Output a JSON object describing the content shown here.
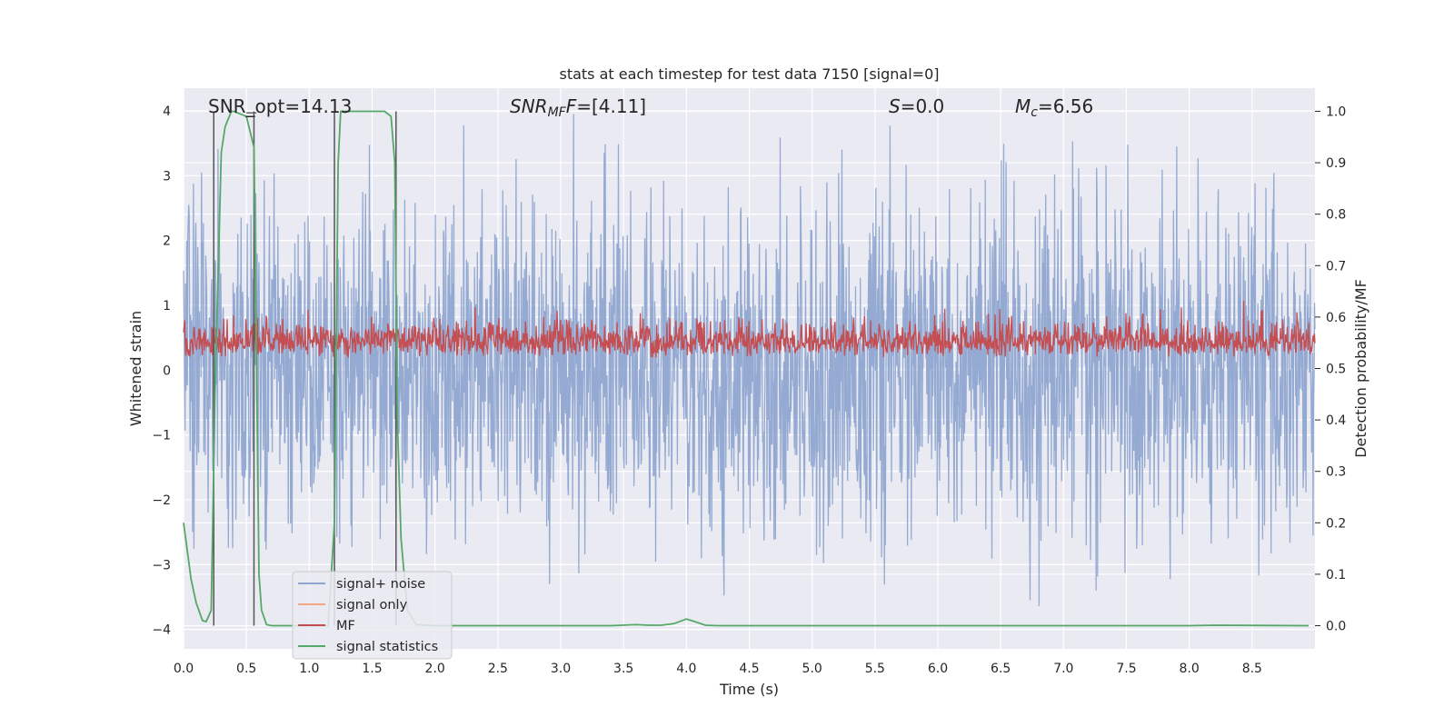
{
  "chart_data": {
    "type": "line",
    "title": "stats at each timestep for test data 7150 [signal=0]",
    "xlabel": "Time (s)",
    "ylabel_left": "Whitened strain",
    "ylabel_right": "Detection probability/MF",
    "xlim": [
      0.0,
      9.0
    ],
    "ylim_left": [
      -4.3,
      4.35
    ],
    "ylim_right": [
      -0.045,
      1.045
    ],
    "x_ticks": [
      "0.0",
      "0.5",
      "1.0",
      "1.5",
      "2.0",
      "2.5",
      "3.0",
      "3.5",
      "4.0",
      "4.5",
      "5.0",
      "5.5",
      "6.0",
      "6.5",
      "7.0",
      "7.5",
      "8.0",
      "8.5"
    ],
    "y_left_ticks": [
      "4",
      "3",
      "2",
      "1",
      "0",
      "−1",
      "−2",
      "−3",
      "−4"
    ],
    "y_right_ticks": [
      "1.0",
      "0.9",
      "0.8",
      "0.7",
      "0.6",
      "0.5",
      "0.4",
      "0.3",
      "0.2",
      "0.1",
      "0.0"
    ],
    "grid": true,
    "annotations": {
      "snr_opt": "SNR_opt=14.13",
      "snr_mf_base": "SNR",
      "snr_mf_sub": "MF",
      "snr_mf_rest": "=[4.11]",
      "s_base": "S",
      "s_rest": "=0.0",
      "mc_base": "M",
      "mc_sub": "c",
      "mc_rest": "=6.56"
    },
    "detection_markers_x": [
      0.24,
      0.56,
      1.2,
      1.69
    ],
    "series": [
      {
        "name": "signal+ noise",
        "color": "#8fa6d0",
        "axis": "left",
        "note": "whitened strain noise, amplitude within about -4 to 4"
      },
      {
        "name": "signal only",
        "color": "#f4a582",
        "axis": "left",
        "values": []
      },
      {
        "name": "MF",
        "color": "#c44e52",
        "axis": "right",
        "note": "matched filter output, mostly between 0.49 and 0.64"
      },
      {
        "name": "signal statistics",
        "color": "#55a868",
        "axis": "right",
        "x": [
          0.0,
          0.06,
          0.1,
          0.15,
          0.18,
          0.22,
          0.25,
          0.3,
          0.33,
          0.38,
          0.4,
          0.5,
          0.52,
          0.56,
          0.6,
          0.62,
          0.66,
          0.7,
          1.0,
          1.15,
          1.2,
          1.23,
          1.25,
          1.3,
          1.6,
          1.65,
          1.68,
          1.7,
          1.73,
          1.78,
          1.85,
          2.0,
          3.4,
          3.6,
          3.7,
          3.8,
          3.9,
          4.0,
          4.08,
          4.15,
          4.25,
          5.0,
          7.0,
          8.0,
          8.2,
          8.95
        ],
        "values": [
          0.2,
          0.09,
          0.045,
          0.01,
          0.008,
          0.03,
          0.45,
          0.92,
          0.97,
          1.0,
          1.0,
          0.99,
          0.97,
          0.93,
          0.1,
          0.03,
          0.002,
          0.0,
          0.0,
          0.0,
          0.2,
          0.9,
          1.0,
          1.0,
          1.0,
          0.99,
          0.9,
          0.4,
          0.17,
          0.03,
          0.002,
          0.0,
          0.0,
          0.002,
          0.001,
          0.001,
          0.004,
          0.013,
          0.007,
          0.001,
          0.0,
          0.0,
          0.0,
          0.0,
          0.001,
          0.0
        ]
      }
    ],
    "legend_position": "lower-left"
  }
}
